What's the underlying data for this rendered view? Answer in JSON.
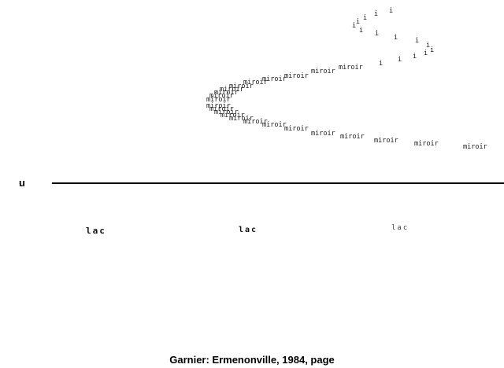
{
  "poem": {
    "upper_word": "miroir",
    "lower_word": "miroir",
    "i_glyph": "i",
    "u_letter": "u",
    "lac_words": [
      "lac",
      "lac",
      "lac"
    ]
  },
  "caption": "Garnier: Ermenonville, 1984, page"
}
